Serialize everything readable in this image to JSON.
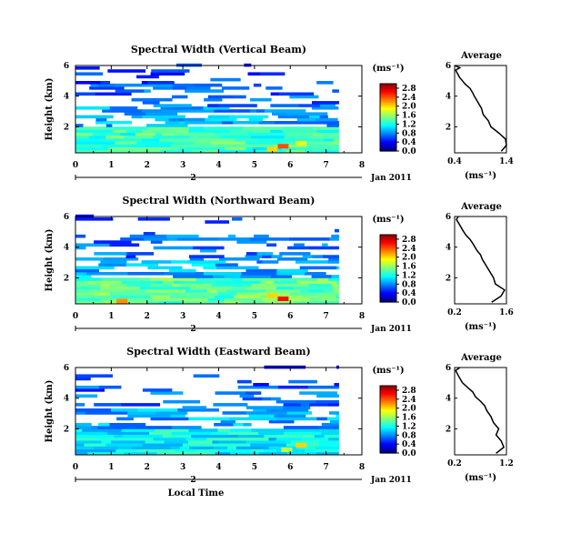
{
  "chart_data": [
    {
      "type": "heatmap",
      "title": "Spectral Width (Vertical Beam)",
      "ylabel": "Height (km)",
      "xticks": [
        "0",
        "1",
        "2",
        "3",
        "4",
        "5",
        "6",
        "7",
        "8"
      ],
      "yticks": [
        "2",
        "4",
        "6"
      ],
      "xlim": [
        0,
        8
      ],
      "ylim": [
        0.3,
        6
      ],
      "x_extent": [
        0,
        7.35
      ],
      "date_label": "2",
      "date_text": "Jan 2011",
      "colorbar": {
        "unit": "(ms⁻¹)",
        "ticks": [
          "0.0",
          "0.4",
          "0.8",
          "1.2",
          "1.6",
          "2.0",
          "2.4",
          "2.8"
        ],
        "range": [
          0,
          3.0
        ]
      },
      "layers": [
        {
          "y0": 0.3,
          "y1": 2.0,
          "value": 1.3,
          "density": 1.0
        },
        {
          "y0": 2.0,
          "y1": 3.3,
          "value": 0.85,
          "density": 0.62
        },
        {
          "y0": 3.3,
          "y1": 4.8,
          "value": 0.65,
          "density": 0.45
        },
        {
          "y0": 4.8,
          "y1": 6.0,
          "value": 0.55,
          "density": 0.15
        }
      ],
      "hotspots": [
        {
          "x": 5.8,
          "y": 0.7,
          "value": 2.4
        },
        {
          "x": 5.5,
          "y": 0.5,
          "value": 2.0
        },
        {
          "x": 6.3,
          "y": 0.9,
          "value": 1.8
        }
      ],
      "average": {
        "title": "Average",
        "xlabel": "(ms⁻¹)",
        "xticks": [
          "0.4",
          "1.4"
        ],
        "xlim": [
          0.4,
          1.4
        ],
        "yticks": [
          "2",
          "4",
          "6"
        ],
        "ylim": [
          0.3,
          6
        ],
        "x": [
          1.3,
          1.4,
          1.38,
          1.25,
          1.1,
          1.05,
          0.95,
          0.92,
          0.85,
          0.78,
          0.75,
          0.7,
          0.6,
          0.55,
          0.5,
          0.45,
          0.42,
          0.5,
          0.4
        ],
        "y": [
          0.4,
          0.8,
          1.2,
          1.6,
          2.0,
          2.4,
          2.8,
          3.2,
          3.6,
          4.0,
          4.2,
          4.5,
          4.8,
          5.0,
          5.2,
          5.5,
          5.7,
          5.85,
          6.0
        ]
      }
    },
    {
      "type": "heatmap",
      "title": "Spectral Width (Northward Beam)",
      "ylabel": "Height (km)",
      "xticks": [
        "0",
        "1",
        "2",
        "3",
        "4",
        "5",
        "6",
        "7",
        "8"
      ],
      "yticks": [
        "2",
        "4",
        "6"
      ],
      "xlim": [
        0,
        8
      ],
      "ylim": [
        0.3,
        6
      ],
      "x_extent": [
        0,
        7.35
      ],
      "date_label": "2",
      "date_text": "Jan 2011",
      "colorbar": {
        "unit": "(ms⁻¹)",
        "ticks": [
          "0.0",
          "0.4",
          "0.8",
          "1.2",
          "1.6",
          "2.0",
          "2.4",
          "2.8"
        ],
        "range": [
          0,
          3.0
        ]
      },
      "layers": [
        {
          "y0": 0.3,
          "y1": 2.0,
          "value": 1.4,
          "density": 1.0
        },
        {
          "y0": 2.0,
          "y1": 3.3,
          "value": 0.9,
          "density": 0.6
        },
        {
          "y0": 3.3,
          "y1": 4.8,
          "value": 0.7,
          "density": 0.42
        },
        {
          "y0": 4.8,
          "y1": 6.0,
          "value": 0.55,
          "density": 0.12
        }
      ],
      "hotspots": [
        {
          "x": 5.8,
          "y": 0.6,
          "value": 2.6
        },
        {
          "x": 1.3,
          "y": 0.45,
          "value": 2.2
        },
        {
          "x": 5.5,
          "y": 0.8,
          "value": 2.0
        }
      ],
      "average": {
        "title": "Average",
        "xlabel": "(ms⁻¹)",
        "xticks": [
          "0.2",
          "1.6"
        ],
        "xlim": [
          0.2,
          1.6
        ],
        "yticks": [
          "2",
          "4",
          "6"
        ],
        "ylim": [
          0.3,
          6
        ],
        "x": [
          1.2,
          1.45,
          1.55,
          1.3,
          1.25,
          1.15,
          1.05,
          0.95,
          0.9,
          0.8,
          0.7,
          0.62,
          0.5,
          0.42,
          0.35,
          0.3,
          0.25,
          0.3
        ],
        "y": [
          0.4,
          0.8,
          1.2,
          1.6,
          2.0,
          2.4,
          2.8,
          3.2,
          3.5,
          3.8,
          4.2,
          4.5,
          4.8,
          5.1,
          5.4,
          5.6,
          5.8,
          6.0
        ]
      }
    },
    {
      "type": "heatmap",
      "title": "Spectral Width (Eastward Beam)",
      "ylabel": "Height (km)",
      "xticks": [
        "0",
        "1",
        "2",
        "3",
        "4",
        "5",
        "6",
        "7",
        "8"
      ],
      "yticks": [
        "2",
        "4",
        "6"
      ],
      "xlim": [
        0,
        8
      ],
      "ylim": [
        0.3,
        6
      ],
      "x_extent": [
        0,
        7.35
      ],
      "date_label": "2",
      "date_text": "Jan 2011",
      "xlabel": "Local Time",
      "colorbar": {
        "unit": "(ms⁻¹)",
        "ticks": [
          "0.0",
          "0.4",
          "0.8",
          "1.2",
          "1.6",
          "2.0",
          "2.4",
          "2.8"
        ],
        "range": [
          0,
          3.0
        ]
      },
      "layers": [
        {
          "y0": 0.3,
          "y1": 2.0,
          "value": 1.1,
          "density": 1.0
        },
        {
          "y0": 2.0,
          "y1": 3.3,
          "value": 0.85,
          "density": 0.6
        },
        {
          "y0": 3.3,
          "y1": 4.8,
          "value": 0.65,
          "density": 0.42
        },
        {
          "y0": 4.8,
          "y1": 6.0,
          "value": 0.5,
          "density": 0.12
        }
      ],
      "hotspots": [
        {
          "x": 6.3,
          "y": 0.9,
          "value": 2.0
        },
        {
          "x": 5.9,
          "y": 0.6,
          "value": 1.7
        }
      ],
      "average": {
        "title": "Average",
        "xlabel": "(ms⁻¹)",
        "xticks": [
          "0.2",
          "1.2"
        ],
        "xlim": [
          0.2,
          1.2
        ],
        "yticks": [
          "2",
          "4",
          "6"
        ],
        "ylim": [
          0.3,
          6
        ],
        "x": [
          1.0,
          1.15,
          1.1,
          1.0,
          1.05,
          0.95,
          0.9,
          0.82,
          0.78,
          0.7,
          0.6,
          0.55,
          0.45,
          0.35,
          0.3,
          0.25,
          0.22,
          0.3
        ],
        "y": [
          0.4,
          0.8,
          1.2,
          1.6,
          2.0,
          2.4,
          2.8,
          3.2,
          3.5,
          3.8,
          4.1,
          4.4,
          4.7,
          5.0,
          5.3,
          5.6,
          5.8,
          6.0
        ]
      }
    }
  ]
}
